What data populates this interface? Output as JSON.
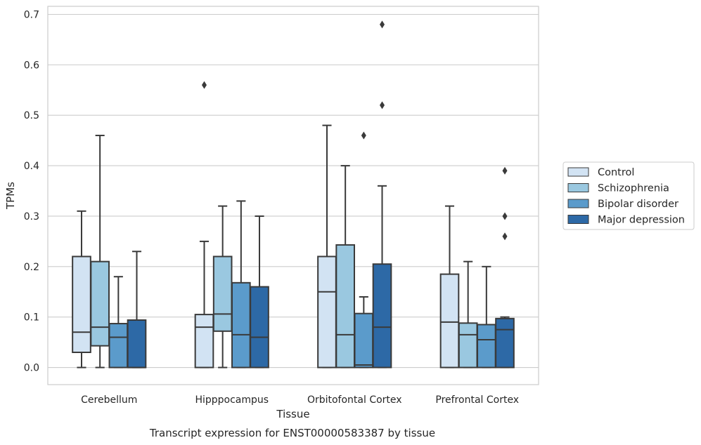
{
  "chart_data": {
    "type": "boxplot",
    "title": "",
    "caption": "Transcript expression for ENST00000583387 by tissue",
    "xlabel": "Tissue",
    "ylabel": "TPMs",
    "ylim": [
      -0.034,
      0.716
    ],
    "yticks": [
      "0.0",
      "0.1",
      "0.2",
      "0.3",
      "0.4",
      "0.5",
      "0.6",
      "0.7"
    ],
    "grid": true,
    "legend_position": "right",
    "categories": [
      "Cerebellum",
      "Hipppocampus",
      "Orbitofontal Cortex",
      "Prefrontal Cortex"
    ],
    "series": [
      {
        "name": "Control",
        "color": "#d2e3f3",
        "boxes": [
          {
            "whislo": 0.0,
            "q1": 0.03,
            "med": 0.07,
            "q3": 0.22,
            "whishi": 0.31,
            "fliers": []
          },
          {
            "whislo": 0.0,
            "q1": 0.0,
            "med": 0.08,
            "q3": 0.105,
            "whishi": 0.25,
            "fliers": [
              0.56
            ]
          },
          {
            "whislo": 0.0,
            "q1": 0.0,
            "med": 0.15,
            "q3": 0.22,
            "whishi": 0.48,
            "fliers": []
          },
          {
            "whislo": 0.0,
            "q1": 0.0,
            "med": 0.09,
            "q3": 0.185,
            "whishi": 0.32,
            "fliers": []
          }
        ]
      },
      {
        "name": "Schizophrenia",
        "color": "#9ac8e0",
        "boxes": [
          {
            "whislo": 0.0,
            "q1": 0.043,
            "med": 0.08,
            "q3": 0.21,
            "whishi": 0.46,
            "fliers": []
          },
          {
            "whislo": 0.0,
            "q1": 0.072,
            "med": 0.106,
            "q3": 0.22,
            "whishi": 0.32,
            "fliers": []
          },
          {
            "whislo": 0.0,
            "q1": 0.0,
            "med": 0.065,
            "q3": 0.243,
            "whishi": 0.4,
            "fliers": []
          },
          {
            "whislo": 0.0,
            "q1": 0.0,
            "med": 0.065,
            "q3": 0.088,
            "whishi": 0.21,
            "fliers": []
          }
        ]
      },
      {
        "name": "Bipolar disorder",
        "color": "#5b9bcb",
        "boxes": [
          {
            "whislo": 0.0,
            "q1": 0.0,
            "med": 0.06,
            "q3": 0.087,
            "whishi": 0.18,
            "fliers": []
          },
          {
            "whislo": 0.0,
            "q1": 0.0,
            "med": 0.065,
            "q3": 0.168,
            "whishi": 0.33,
            "fliers": []
          },
          {
            "whislo": 0.0,
            "q1": 0.0,
            "med": 0.005,
            "q3": 0.107,
            "whishi": 0.14,
            "fliers": [
              0.46
            ]
          },
          {
            "whislo": 0.0,
            "q1": 0.0,
            "med": 0.055,
            "q3": 0.085,
            "whishi": 0.2,
            "fliers": []
          }
        ]
      },
      {
        "name": "Major depression",
        "color": "#2d69a6",
        "boxes": [
          {
            "whislo": 0.0,
            "q1": 0.0,
            "med": 0.0,
            "q3": 0.094,
            "whishi": 0.23,
            "fliers": []
          },
          {
            "whislo": 0.0,
            "q1": 0.0,
            "med": 0.06,
            "q3": 0.16,
            "whishi": 0.3,
            "fliers": []
          },
          {
            "whislo": 0.0,
            "q1": 0.0,
            "med": 0.08,
            "q3": 0.205,
            "whishi": 0.36,
            "fliers": [
              0.52,
              0.68
            ]
          },
          {
            "whislo": 0.0,
            "q1": 0.0,
            "med": 0.075,
            "q3": 0.097,
            "whishi": 0.1,
            "fliers": [
              0.26,
              0.3,
              0.39
            ]
          }
        ]
      }
    ]
  }
}
